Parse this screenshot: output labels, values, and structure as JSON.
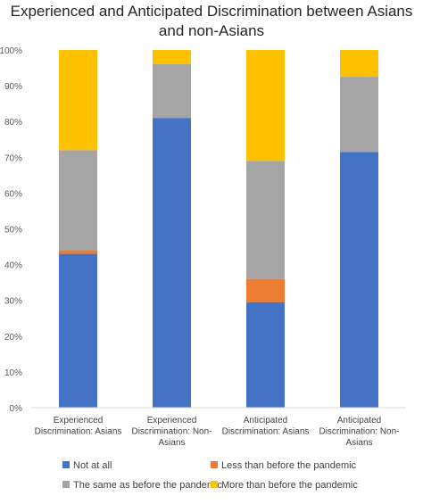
{
  "chart_data": {
    "type": "bar",
    "stacked": true,
    "normalized": true,
    "title": "Experienced and Anticipated Discrimination between Asians and non-Asians",
    "categories": [
      [
        "Experienced",
        "Discrimination: Asians"
      ],
      [
        "Experienced",
        "Discrimination: Non-",
        "Asians"
      ],
      [
        "Anticipated",
        "Discrimination: Asians"
      ],
      [
        "Anticipated",
        "Discrimination: Non-",
        "Asians"
      ]
    ],
    "series": [
      {
        "name": "Not at all",
        "color": "#4472C4",
        "values": [
          43,
          81,
          29.5,
          71.5
        ]
      },
      {
        "name": "Less than before the pandemic",
        "color": "#ED7D31",
        "values": [
          1,
          0,
          6.5,
          0
        ]
      },
      {
        "name": "The same as before the pandemic",
        "color": "#A5A5A5",
        "values": [
          28,
          15,
          33,
          21
        ]
      },
      {
        "name": "More than before the pandemic",
        "color": "#FFC000",
        "values": [
          28,
          4,
          31,
          7.5
        ]
      }
    ],
    "y_ticks": [
      "0%",
      "10%",
      "20%",
      "30%",
      "40%",
      "50%",
      "60%",
      "70%",
      "80%",
      "90%",
      "100%"
    ],
    "ylim": [
      0,
      100
    ],
    "grid": false,
    "legend_position": "bottom"
  }
}
